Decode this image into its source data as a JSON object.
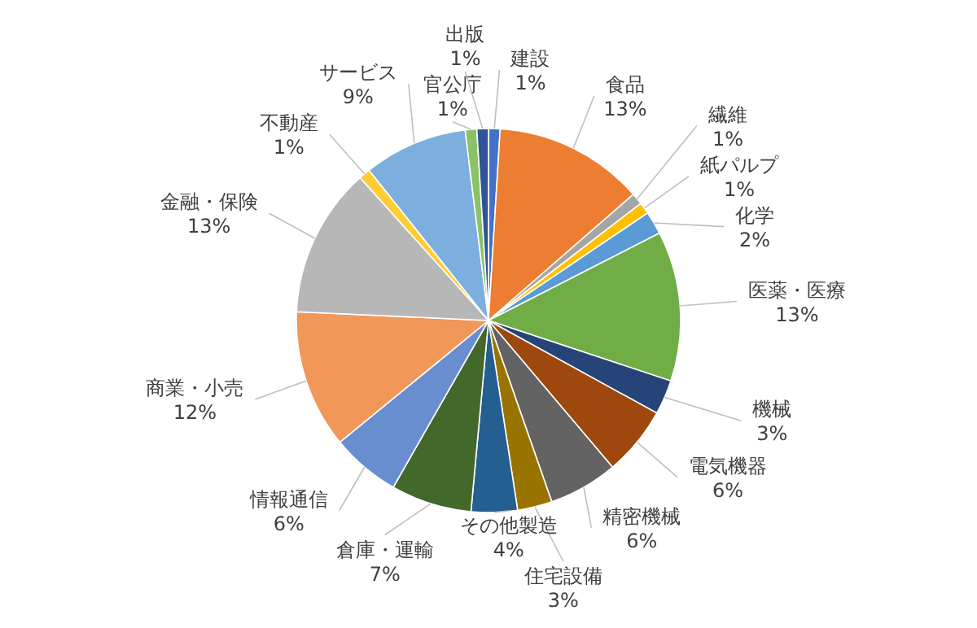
{
  "chart_data": {
    "type": "pie",
    "categories": [
      "建設",
      "食品",
      "繊維",
      "紙パルプ",
      "化学",
      "医薬・医療",
      "機械",
      "電気機器",
      "精密機械",
      "住宅設備",
      "その他製造",
      "倉庫・運輸",
      "情報通信",
      "商業・小売",
      "金融・保険",
      "不動産",
      "サービス",
      "官公庁",
      "出版"
    ],
    "values": [
      1,
      13,
      1,
      1,
      2,
      13,
      3,
      6,
      6,
      3,
      4,
      7,
      6,
      12,
      13,
      1,
      9,
      1,
      1
    ],
    "colors": [
      "#4472c4",
      "#ed7d31",
      "#a5a5a5",
      "#ffc000",
      "#5b9bd5",
      "#70ad47",
      "#264478",
      "#9e480e",
      "#636363",
      "#997300",
      "#255e91",
      "#43682b",
      "#698ed0",
      "#f1975a",
      "#b7b7b7",
      "#ffcd33",
      "#7cafdd",
      "#8cc168",
      "#2f5597"
    ],
    "value_labels": [
      "1%",
      "13%",
      "1%",
      "1%",
      "2%",
      "13%",
      "3%",
      "6%",
      "6%",
      "3%",
      "4%",
      "7%",
      "6%",
      "12%",
      "13%",
      "1%",
      "9%",
      "1%",
      "1%"
    ],
    "legend": false
  }
}
